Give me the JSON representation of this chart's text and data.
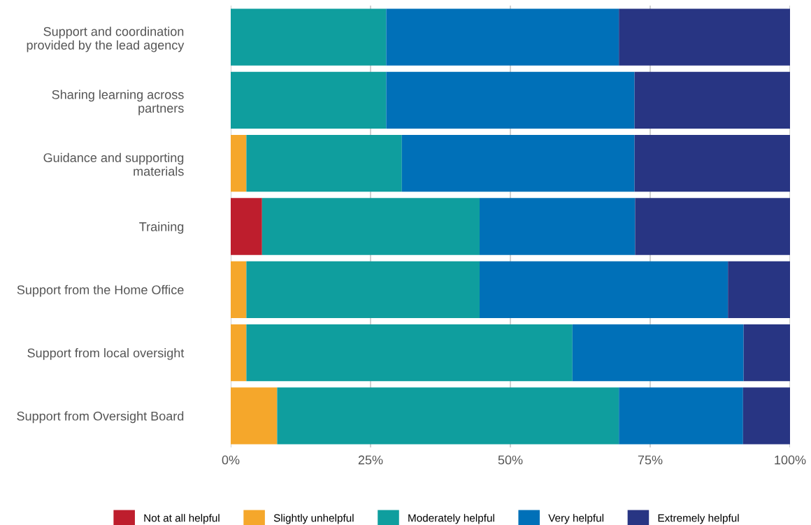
{
  "chart_data": {
    "type": "bar",
    "orientation": "horizontal",
    "stacked": true,
    "categories": [
      "Support and coordination\nprovided by the lead agency",
      "Sharing learning across\npartners",
      "Guidance and supporting\nmaterials",
      "Training",
      "Support from the Home Office",
      "Support from local oversight",
      "Support from Oversight Board"
    ],
    "series": [
      {
        "name": "Not at all helpful",
        "color": "#be1e2d",
        "values": [
          0,
          0,
          0,
          5.6,
          0,
          0,
          0
        ]
      },
      {
        "name": "Slightly unhelpful",
        "color": "#f5a72b",
        "values": [
          0,
          0,
          2.8,
          0,
          2.8,
          2.8,
          8.3
        ]
      },
      {
        "name": "Moderately helpful",
        "color": "#0f9e9e",
        "values": [
          27.8,
          27.8,
          27.8,
          38.9,
          41.7,
          58.3,
          61.1
        ]
      },
      {
        "name": "Very helpful",
        "color": "#0070b8",
        "values": [
          41.6,
          44.4,
          41.6,
          27.8,
          44.4,
          30.6,
          22.2
        ]
      },
      {
        "name": "Extremely helpful",
        "color": "#283583",
        "values": [
          30.6,
          27.8,
          27.8,
          27.7,
          11.1,
          8.3,
          8.4
        ]
      }
    ],
    "xlim": [
      0,
      100
    ],
    "xticks": [
      {
        "value": 0,
        "label": "0%"
      },
      {
        "value": 25,
        "label": "25%"
      },
      {
        "value": 50,
        "label": "50%"
      },
      {
        "value": 75,
        "label": "75%"
      },
      {
        "value": 100,
        "label": "100%"
      }
    ],
    "grid": "x",
    "legend": "bottom"
  }
}
